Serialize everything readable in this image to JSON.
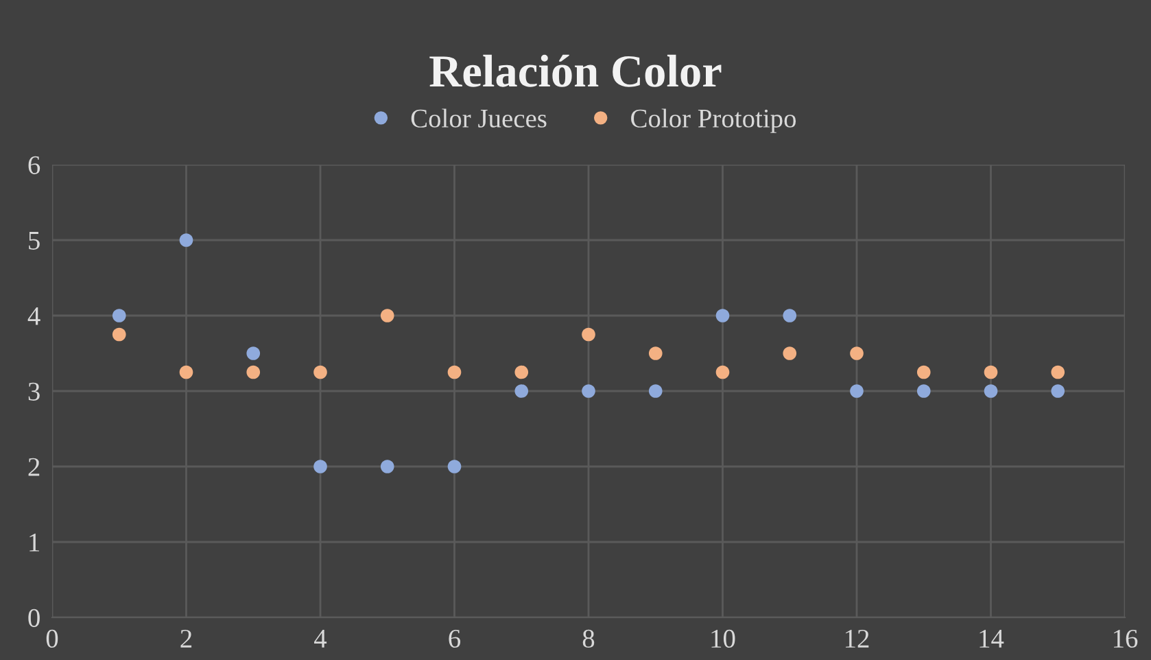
{
  "chart_data": {
    "type": "scatter",
    "title": "Relación Color",
    "x": [
      1,
      2,
      3,
      4,
      5,
      6,
      7,
      8,
      9,
      10,
      11,
      12,
      13,
      14,
      15
    ],
    "series": [
      {
        "name": "Color Jueces",
        "color": "#8faadc",
        "values": [
          4,
          5,
          3.5,
          2,
          2,
          2,
          3,
          3,
          3,
          4,
          4,
          3,
          3,
          3,
          3
        ]
      },
      {
        "name": "Color Prototipo",
        "color": "#f4b183",
        "values": [
          3.75,
          3.25,
          3.25,
          3.25,
          4,
          3.25,
          3.25,
          3.75,
          3.5,
          3.25,
          3.5,
          3.5,
          3.25,
          3.25,
          3.25
        ]
      }
    ],
    "xlim": [
      0,
      16
    ],
    "xticks": [
      0,
      2,
      4,
      6,
      8,
      10,
      12,
      14,
      16
    ],
    "ylim": [
      0,
      6
    ],
    "yticks": [
      0,
      1,
      2,
      3,
      4,
      5,
      6
    ],
    "grid": true,
    "legend": "top",
    "marker": "circle"
  }
}
